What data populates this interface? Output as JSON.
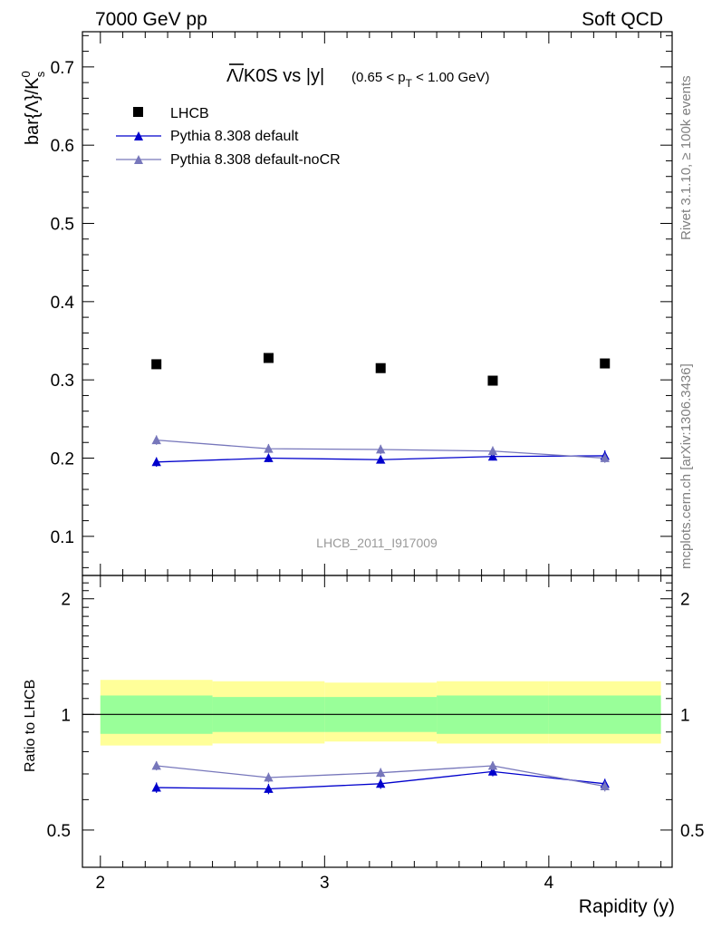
{
  "header": {
    "left": "7000 GeV pp",
    "right": "Soft QCD"
  },
  "title": {
    "main": "Λ/K0S vs |y|",
    "cut_prefix": "(0.65 < p",
    "cut_sub": "T",
    "cut_suffix": " < 1.00 GeV)"
  },
  "side_labels": {
    "rivet": "Rivet 3.1.10, ≥ 100k events",
    "mcplots": "mcplots.cern.ch [arXiv:1306.3436]"
  },
  "analysis_id": "LHCB_2011_I917009",
  "chart_data": [
    {
      "type": "scatter",
      "panel": "main",
      "ylabel": "bar{Λ}/K",
      "ylabel_sup": "0",
      "ylabel_sub": "s",
      "ylim": [
        0.05,
        0.745
      ],
      "xlim": [
        1.92,
        4.55
      ],
      "yticks": [
        {
          "value": 0.1,
          "label": "0.1"
        },
        {
          "value": 0.2,
          "label": "0.2"
        },
        {
          "value": 0.3,
          "label": "0.3"
        },
        {
          "value": 0.4,
          "label": "0.4"
        },
        {
          "value": 0.5,
          "label": "0.5"
        },
        {
          "value": 0.6,
          "label": "0.6"
        },
        {
          "value": 0.7,
          "label": "0.7"
        }
      ],
      "legend": "top-left",
      "series": [
        {
          "name": "LHCB",
          "color": "#000000",
          "marker": "square",
          "line": false,
          "x": [
            2.25,
            2.75,
            3.25,
            3.75,
            4.25
          ],
          "y": [
            0.32,
            0.328,
            0.315,
            0.299,
            0.321
          ],
          "err": [
            0.003,
            0.003,
            0.003,
            0.003,
            0.003
          ]
        },
        {
          "name": "Pythia 8.308 default",
          "color": "#0000cc",
          "marker": "triangle",
          "line": true,
          "x": [
            2.25,
            2.75,
            3.25,
            3.75,
            4.25
          ],
          "y": [
            0.195,
            0.2,
            0.198,
            0.202,
            0.203
          ],
          "err": [
            0.006,
            0.005,
            0.005,
            0.005,
            0.007
          ]
        },
        {
          "name": "Pythia 8.308 default-noCR",
          "color": "#7777bb",
          "marker": "triangle",
          "line": true,
          "x": [
            2.25,
            2.75,
            3.25,
            3.75,
            4.25
          ],
          "y": [
            0.223,
            0.212,
            0.211,
            0.209,
            0.2
          ],
          "err": [
            0.006,
            0.006,
            0.006,
            0.006,
            0.006
          ]
        }
      ]
    },
    {
      "type": "scatter",
      "panel": "ratio",
      "ylabel": "Ratio to LHCB",
      "xlabel": "Rapidity (y)",
      "ylim": [
        0.4,
        2.3
      ],
      "xlim": [
        1.92,
        4.55
      ],
      "xticks": [
        {
          "value": 2,
          "label": "2"
        },
        {
          "value": 3,
          "label": "3"
        },
        {
          "value": 4,
          "label": "4"
        }
      ],
      "yticks": [
        {
          "value": 0.5,
          "label": "0.5"
        },
        {
          "value": 1,
          "label": "1"
        },
        {
          "value": 2,
          "label": "2"
        }
      ],
      "bands": [
        {
          "x0": 2.0,
          "x1": 2.5,
          "inner": [
            0.89,
            1.12
          ],
          "outer": [
            0.83,
            1.23
          ]
        },
        {
          "x0": 2.5,
          "x1": 3.0,
          "inner": [
            0.9,
            1.11
          ],
          "outer": [
            0.84,
            1.22
          ]
        },
        {
          "x0": 3.0,
          "x1": 3.5,
          "inner": [
            0.9,
            1.11
          ],
          "outer": [
            0.85,
            1.21
          ]
        },
        {
          "x0": 3.5,
          "x1": 4.0,
          "inner": [
            0.89,
            1.12
          ],
          "outer": [
            0.84,
            1.22
          ]
        },
        {
          "x0": 4.0,
          "x1": 4.5,
          "inner": [
            0.89,
            1.12
          ],
          "outer": [
            0.84,
            1.22
          ]
        }
      ],
      "band_colors": {
        "outer": "#ffff99",
        "inner": "#99ff99"
      },
      "series": [
        {
          "name": "Pythia 8.308 default",
          "color": "#0000cc",
          "x": [
            2.25,
            2.75,
            3.25,
            3.75,
            4.25
          ],
          "y": [
            0.645,
            0.64,
            0.66,
            0.71,
            0.66
          ],
          "err": [
            0.02,
            0.02,
            0.02,
            0.02,
            0.02
          ]
        },
        {
          "name": "Pythia 8.308 default-noCR",
          "color": "#7777bb",
          "x": [
            2.25,
            2.75,
            3.25,
            3.75,
            4.25
          ],
          "y": [
            0.735,
            0.685,
            0.705,
            0.735,
            0.65
          ],
          "err": [
            0.02,
            0.02,
            0.02,
            0.02,
            0.02
          ]
        }
      ]
    }
  ]
}
